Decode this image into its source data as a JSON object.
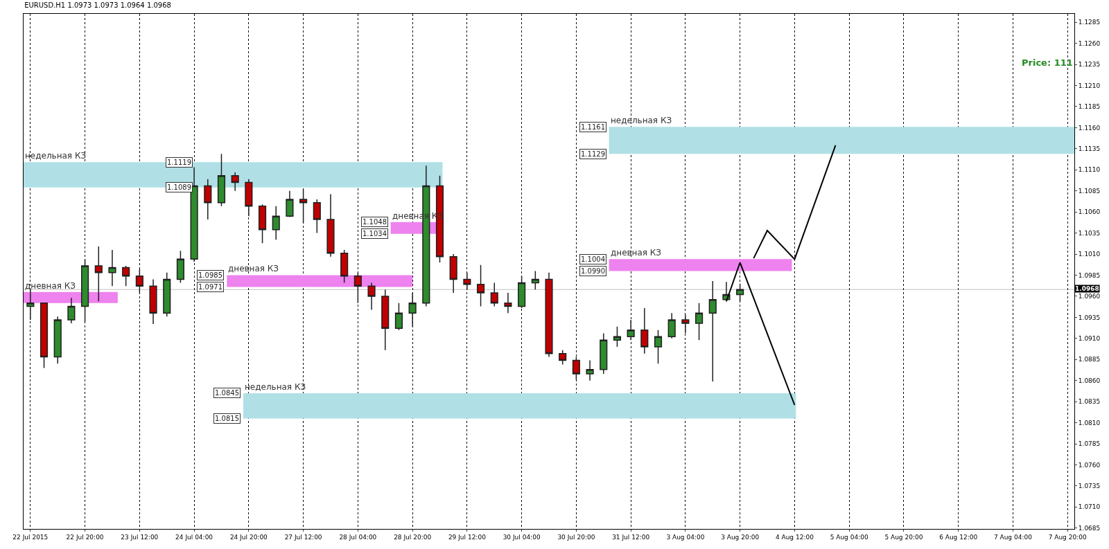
{
  "chart_data": {
    "type": "candlestick",
    "title": "EURUSD.H1 1.0973 1.0973 1.0964 1.0968",
    "categories": [
      "22 Jul 2015",
      null,
      null,
      null,
      "22 Jul 20:00",
      null,
      null,
      null,
      "23 Jul 12:00",
      null,
      null,
      null,
      "24 Jul 04:00",
      null,
      null,
      null,
      "24 Jul 20:00",
      null,
      null,
      null,
      "27 Jul 12:00",
      null,
      null,
      null,
      "28 Jul 04:00",
      null,
      null,
      null,
      "28 Jul 20:00",
      null,
      null,
      null,
      "29 Jul 12:00",
      null,
      null,
      null,
      "30 Jul 04:00",
      null,
      null,
      null,
      "30 Jul 20:00",
      null,
      null,
      null,
      "31 Jul 12:00",
      null,
      null,
      null,
      "3 Aug 04:00",
      null,
      null,
      null,
      "3 Aug 20:00",
      null,
      null,
      null,
      "4 Aug 12:00",
      null,
      null,
      null,
      "5 Aug 04:00",
      null,
      null,
      null,
      "5 Aug 20:00",
      null,
      null,
      null,
      "6 Aug 12:00",
      null,
      null,
      null,
      "7 Aug 04:00",
      null,
      null,
      null,
      "7 Aug 20:00"
    ],
    "ohlc": [
      [
        1.0948,
        1.0969,
        1.0932,
        1.0952
      ],
      [
        1.0952,
        1.0952,
        1.0875,
        1.0888
      ],
      [
        1.0888,
        1.0936,
        1.088,
        1.0932
      ],
      [
        1.0932,
        1.0958,
        1.0928,
        1.0948
      ],
      [
        1.0948,
        1.1004,
        1.093,
        1.0996
      ],
      [
        1.0996,
        1.1019,
        1.0954,
        1.0988
      ],
      [
        1.0988,
        1.1015,
        1.0972,
        1.0994
      ],
      [
        1.0994,
        1.0996,
        1.0972,
        1.0984
      ],
      [
        1.0984,
        1.0992,
        1.0964,
        1.0972
      ],
      [
        1.0972,
        1.098,
        1.0927,
        1.094
      ],
      [
        1.094,
        1.0988,
        1.0936,
        1.098
      ],
      [
        1.098,
        1.1014,
        1.0976,
        1.1004
      ],
      [
        1.1004,
        1.1113,
        1.1001,
        1.1091
      ],
      [
        1.1091,
        1.1099,
        1.1051,
        1.1071
      ],
      [
        1.1071,
        1.1129,
        1.1067,
        1.1103
      ],
      [
        1.1103,
        1.1107,
        1.1085,
        1.1095
      ],
      [
        1.1095,
        1.1099,
        1.1055,
        1.1067
      ],
      [
        1.1067,
        1.1069,
        1.1023,
        1.1039
      ],
      [
        1.1039,
        1.1067,
        1.1027,
        1.1055
      ],
      [
        1.1055,
        1.1085,
        1.1054,
        1.1075
      ],
      [
        1.1075,
        1.1087,
        1.1047,
        1.1071
      ],
      [
        1.1071,
        1.1075,
        1.1035,
        1.1051
      ],
      [
        1.1051,
        1.1081,
        1.1007,
        1.1011
      ],
      [
        1.1011,
        1.1015,
        1.0976,
        1.0984
      ],
      [
        1.0984,
        1.0988,
        1.0952,
        1.0972
      ],
      [
        1.0972,
        1.0976,
        1.0944,
        1.096
      ],
      [
        1.096,
        1.0968,
        1.0896,
        1.0922
      ],
      [
        1.0922,
        1.0952,
        1.092,
        1.094
      ],
      [
        1.094,
        1.0964,
        1.0924,
        1.0952
      ],
      [
        1.0952,
        1.1115,
        1.0948,
        1.1091
      ],
      [
        1.1091,
        1.1103,
        1.1,
        1.1007
      ],
      [
        1.1007,
        1.101,
        1.0964,
        1.098
      ],
      [
        1.098,
        1.0988,
        1.0968,
        1.0974
      ],
      [
        1.0974,
        1.0997,
        1.0948,
        1.0964
      ],
      [
        1.0964,
        1.0976,
        1.0948,
        1.0952
      ],
      [
        1.0952,
        1.0964,
        1.094,
        1.0948
      ],
      [
        1.0948,
        1.0984,
        1.0946,
        1.0976
      ],
      [
        1.0976,
        1.099,
        1.0968,
        1.098
      ],
      [
        1.098,
        1.0988,
        1.0888,
        1.0892
      ],
      [
        1.0892,
        1.0896,
        1.0879,
        1.0884
      ],
      [
        1.0884,
        1.0888,
        1.0861,
        1.0868
      ],
      [
        1.0868,
        1.0884,
        1.086,
        1.0873
      ],
      [
        1.0873,
        1.0916,
        1.0868,
        1.0908
      ],
      [
        1.0908,
        1.0924,
        1.09,
        1.0912
      ],
      [
        1.0912,
        1.0932,
        1.0908,
        1.092
      ],
      [
        1.092,
        1.0946,
        1.0892,
        1.09
      ],
      [
        1.09,
        1.092,
        1.088,
        1.0912
      ],
      [
        1.0912,
        1.094,
        1.091,
        1.0932
      ],
      [
        1.0932,
        1.0938,
        1.0916,
        1.0928
      ],
      [
        1.0928,
        1.0952,
        1.0908,
        1.094
      ],
      [
        1.094,
        1.0978,
        1.0859,
        1.0956
      ],
      [
        1.0956,
        1.0977,
        1.0954,
        1.0962
      ],
      [
        1.0962,
        1.0975,
        1.0954,
        1.0968
      ],
      null,
      null,
      null,
      null,
      null,
      null,
      null,
      null,
      null,
      null,
      null,
      null,
      null,
      null,
      null,
      null,
      null,
      null,
      null,
      null,
      null,
      null,
      null,
      null
    ],
    "colors": [
      "#2e8b2e",
      "#c00000",
      "#2e8b2e",
      "#2e8b2e",
      "#2e8b2e",
      "#c00000",
      "#2e8b2e",
      "#c00000",
      "#c00000",
      "#c00000",
      "#2e8b2e",
      "#2e8b2e",
      "#2e8b2e",
      "#c00000",
      "#2e8b2e",
      "#c00000",
      "#c00000",
      "#c00000",
      "#2e8b2e",
      "#2e8b2e",
      "#c00000",
      "#c00000",
      "#c00000",
      "#c00000",
      "#c00000",
      "#c00000",
      "#c00000",
      "#2e8b2e",
      "#2e8b2e",
      "#2e8b2e",
      "#c00000",
      "#c00000",
      "#c00000",
      "#c00000",
      "#c00000",
      "#c00000",
      "#2e8b2e",
      "#2e8b2e",
      "#c00000",
      "#c00000",
      "#c00000",
      "#2e8b2e",
      "#2e8b2e",
      "#2e8b2e",
      "#2e8b2e",
      "#c00000",
      "#2e8b2e",
      "#2e8b2e",
      "#c00000",
      "#2e8b2e",
      "#2e8b2e",
      "#2e8b2e",
      "#2e8b2e",
      null,
      null,
      null,
      null,
      null,
      null,
      null,
      null,
      null,
      null,
      null,
      null,
      null,
      null,
      null,
      null,
      null,
      null,
      null,
      null,
      null,
      null,
      null,
      null
    ],
    "series": [
      {
        "type": "line",
        "color": "#000000",
        "values": [
          null,
          null,
          null,
          null,
          null,
          null,
          null,
          null,
          null,
          null,
          null,
          null,
          null,
          null,
          null,
          null,
          null,
          null,
          null,
          null,
          null,
          null,
          null,
          null,
          null,
          null,
          null,
          null,
          null,
          null,
          null,
          null,
          null,
          null,
          null,
          null,
          null,
          null,
          null,
          null,
          null,
          null,
          null,
          null,
          null,
          null,
          null,
          null,
          null,
          null,
          null,
          1.0954,
          1.1,
          null,
          null,
          null,
          1.0831,
          null,
          null,
          null,
          null,
          null,
          null,
          null,
          null,
          null,
          null,
          null,
          null,
          null,
          null,
          null,
          null,
          null,
          null,
          null,
          null
        ]
      },
      {
        "type": "line",
        "color": "#000000",
        "values": [
          null,
          null,
          null,
          null,
          null,
          null,
          null,
          null,
          null,
          null,
          null,
          null,
          null,
          null,
          null,
          null,
          null,
          null,
          null,
          null,
          null,
          null,
          null,
          null,
          null,
          null,
          null,
          null,
          null,
          null,
          null,
          null,
          null,
          null,
          null,
          null,
          null,
          null,
          null,
          null,
          null,
          null,
          null,
          null,
          null,
          null,
          null,
          null,
          null,
          null,
          null,
          null,
          null,
          1.1005,
          1.1038,
          null,
          1.1004,
          null,
          null,
          1.1139,
          null,
          null,
          null,
          null,
          null,
          null,
          null,
          null,
          null,
          null,
          null,
          null,
          null,
          null,
          null,
          null,
          null
        ]
      }
    ],
    "bands": [
      {
        "axis": "y",
        "from": 1.1089,
        "to": 1.1119,
        "label": "недельная КЗ",
        "color": "#b0e0e6"
      },
      {
        "axis": "y",
        "from": 1.0952,
        "to": 1.0965,
        "label": "дневная КЗ",
        "color": "#ee82ee"
      },
      {
        "axis": "y",
        "from": 1.0971,
        "to": 1.0985,
        "label": "дневная КЗ",
        "color": "#ee82ee"
      },
      {
        "axis": "y",
        "from": 1.1034,
        "to": 1.1048,
        "label": "дневная КЗ",
        "color": "#ee82ee"
      },
      {
        "axis": "y",
        "from": 1.0815,
        "to": 1.0845,
        "label": "недельная КЗ",
        "color": "#b0e0e6"
      },
      {
        "axis": "y",
        "from": 1.1129,
        "to": 1.1161,
        "label": "недельная КЗ",
        "color": "#b0e0e6"
      },
      {
        "axis": "y",
        "from": 1.099,
        "to": 1.1004,
        "label": "дневная КЗ",
        "color": "#ee82ee"
      }
    ],
    "annotations": [
      {
        "text": "1.1119",
        "y": 1.1119
      },
      {
        "text": "1.1089",
        "y": 1.1089
      },
      {
        "text": "1.0985",
        "y": 1.0985
      },
      {
        "text": "1.0971",
        "y": 1.0971
      },
      {
        "text": "1.1048",
        "y": 1.1048
      },
      {
        "text": "1.1034",
        "y": 1.1034
      },
      {
        "text": "1.0845",
        "y": 1.0845
      },
      {
        "text": "1.0815",
        "y": 1.0815
      },
      {
        "text": "1.1161",
        "y": 1.1161
      },
      {
        "text": "1.1129",
        "y": 1.1129
      },
      {
        "text": "1.1004",
        "y": 1.1004
      },
      {
        "text": "1.0990",
        "y": 1.099
      },
      "Price: 111"
    ],
    "ref_lines": [
      {
        "axis": "y",
        "value": 1.0968,
        "label": "1.0968",
        "color": "#c0c0c0"
      }
    ],
    "ylim": [
      1.0684,
      1.1295
    ],
    "yticks": [
      {
        "value": 1.0685,
        "label": "1.0685"
      },
      {
        "value": 1.071,
        "label": "1.0710"
      },
      {
        "value": 1.0735,
        "label": "1.0735"
      },
      {
        "value": 1.076,
        "label": "1.0760"
      },
      {
        "value": 1.0785,
        "label": "1.0785"
      },
      {
        "value": 1.081,
        "label": "1.0810"
      },
      {
        "value": 1.0835,
        "label": "1.0835"
      },
      {
        "value": 1.086,
        "label": "1.0860"
      },
      {
        "value": 1.0885,
        "label": "1.0885"
      },
      {
        "value": 1.091,
        "label": "1.0910"
      },
      {
        "value": 1.0935,
        "label": "1.0935"
      },
      {
        "value": 1.096,
        "label": "1.0960"
      },
      {
        "value": 1.0985,
        "label": "1.0985"
      },
      {
        "value": 1.101,
        "label": "1.1010"
      },
      {
        "value": 1.1035,
        "label": "1.1035"
      },
      {
        "value": 1.106,
        "label": "1.1060"
      },
      {
        "value": 1.1085,
        "label": "1.1085"
      },
      {
        "value": 1.111,
        "label": "1.1110"
      },
      {
        "value": 1.1135,
        "label": "1.1135"
      },
      {
        "value": 1.116,
        "label": "1.1160"
      },
      {
        "value": 1.1185,
        "label": "1.1185"
      },
      {
        "value": 1.121,
        "label": "1.1210"
      },
      {
        "value": 1.1235,
        "label": "1.1235"
      },
      {
        "value": 1.126,
        "label": "1.1260"
      },
      {
        "value": 1.1285,
        "label": "1.1285"
      }
    ],
    "grid": "x"
  }
}
